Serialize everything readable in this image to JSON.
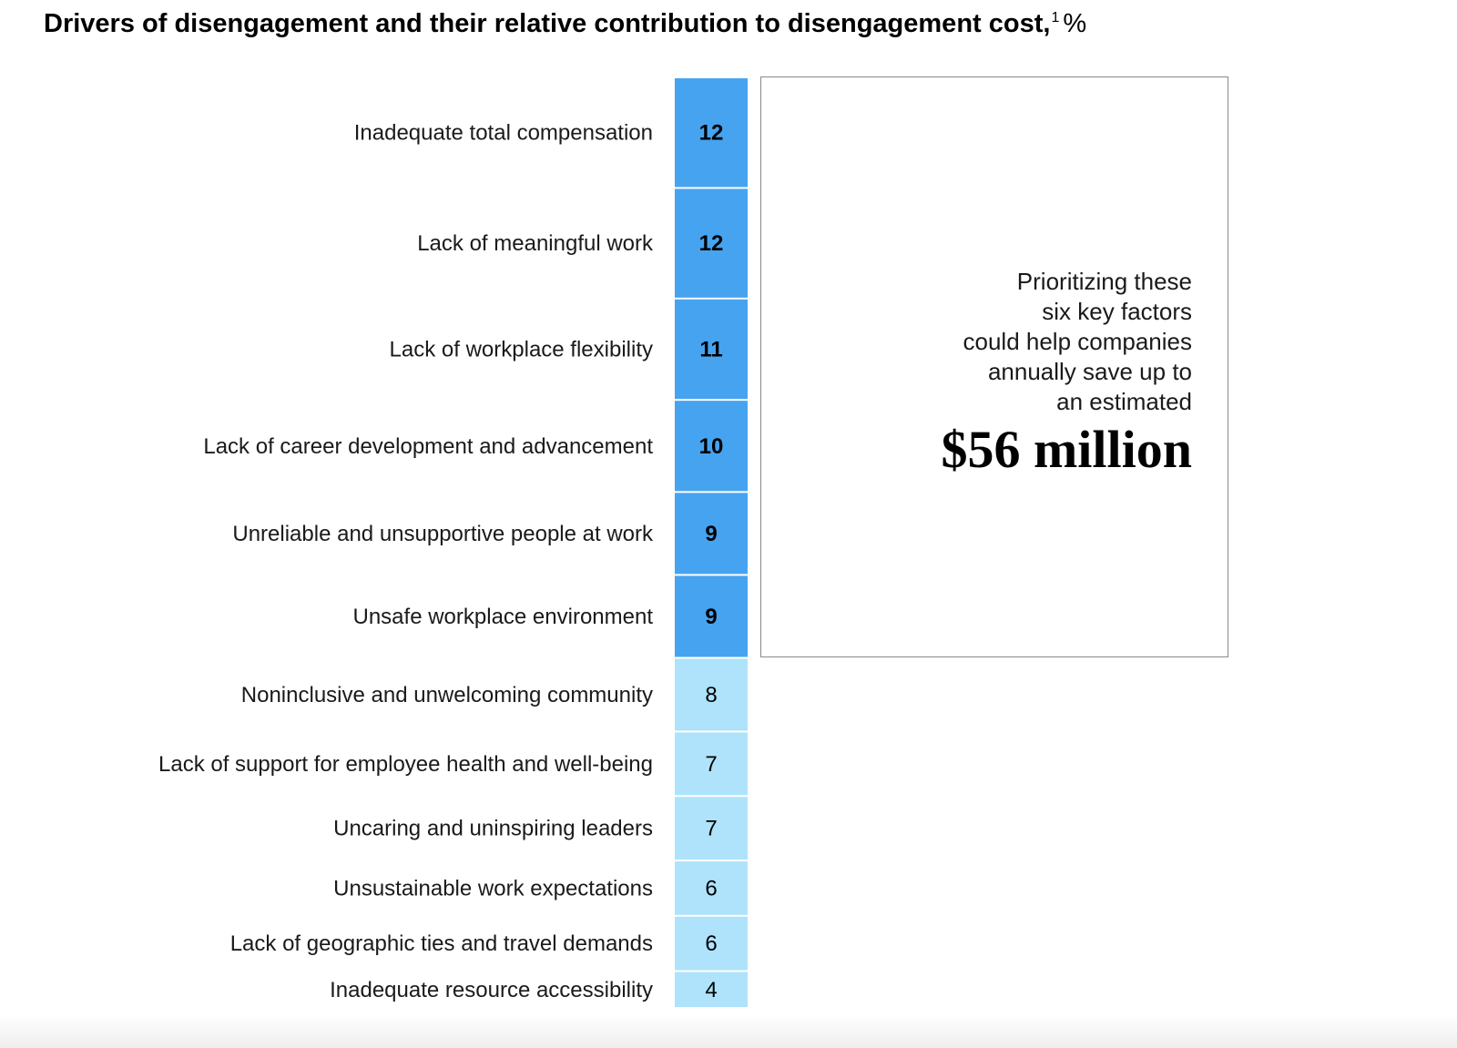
{
  "title": {
    "text": "Drivers of disengagement and their relative contribution to disengagement cost,",
    "footnote": "1",
    "unit": "%"
  },
  "callout": {
    "lines": [
      "Prioritizing these",
      "six key factors",
      "could help companies",
      "annually save up to",
      "an estimated"
    ],
    "amount": "$56 million",
    "highlighted_count": 6
  },
  "colors": {
    "highlight": "#46a3f0",
    "base": "#aee3fb",
    "separator": "#ffffff"
  },
  "chart_data": {
    "type": "bar",
    "orientation": "stacked-column",
    "title": "Drivers of disengagement and their relative contribution to disengagement cost, %",
    "categories": [
      "Inadequate total compensation",
      "Lack of meaningful work",
      "Lack of workplace flexibility",
      "Lack of career development and advancement",
      "Unreliable and unsupportive people at work",
      "Unsafe workplace environment",
      "Noninclusive and unwelcoming community",
      "Lack of support for employee health and well-being",
      "Uncaring and uninspiring leaders",
      "Unsustainable work expectations",
      "Lack of geographic ties and travel demands",
      "Inadequate resource accessibility"
    ],
    "values": [
      12,
      12,
      11,
      10,
      9,
      9,
      8,
      7,
      7,
      6,
      6,
      4
    ],
    "highlighted": [
      true,
      true,
      true,
      true,
      true,
      true,
      false,
      false,
      false,
      false,
      false,
      false
    ],
    "unit": "%"
  }
}
